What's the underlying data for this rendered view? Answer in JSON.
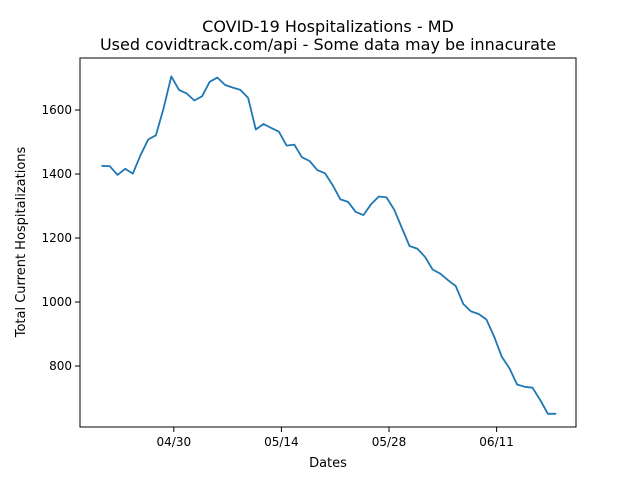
{
  "chart_data": {
    "type": "line",
    "title": "COVID-19 Hospitalizations - MD",
    "subtitle": "Used covidtrack.com/api - Some data may be innacurate",
    "xlabel": "Dates",
    "ylabel": "Total Current Hospitalizations",
    "x_ticks": [
      "04/30",
      "05/14",
      "05/28",
      "06/11"
    ],
    "y_ticks": [
      800,
      1000,
      1200,
      1400,
      1600
    ],
    "ylim": [
      622,
      1768
    ],
    "grid": false,
    "series": [
      {
        "color": "#1f77b4",
        "x": [
          "04/21",
          "04/22",
          "04/23",
          "04/24",
          "04/25",
          "04/26",
          "04/27",
          "04/28",
          "04/29",
          "04/30",
          "05/01",
          "05/02",
          "05/03",
          "05/04",
          "05/05",
          "05/06",
          "05/07",
          "05/08",
          "05/09",
          "05/10",
          "05/11",
          "05/12",
          "05/13",
          "05/14",
          "05/15",
          "05/16",
          "05/17",
          "05/18",
          "05/19",
          "05/20",
          "05/21",
          "05/22",
          "05/23",
          "05/24",
          "05/25",
          "05/26",
          "05/27",
          "05/28",
          "05/29",
          "05/30",
          "05/31",
          "06/01",
          "06/02",
          "06/03",
          "06/04",
          "06/05",
          "06/06",
          "06/07",
          "06/08",
          "06/09",
          "06/10",
          "06/11",
          "06/12",
          "06/13",
          "06/14",
          "06/15",
          "06/16",
          "06/17",
          "06/18",
          "06/19"
        ],
        "values": [
          1433,
          1432,
          1405,
          1424,
          1409,
          1466,
          1515,
          1528,
          1612,
          1711,
          1669,
          1658,
          1636,
          1649,
          1694,
          1707,
          1684,
          1676,
          1669,
          1644,
          1546,
          1563,
          1551,
          1539,
          1496,
          1499,
          1460,
          1448,
          1420,
          1410,
          1373,
          1329,
          1321,
          1290,
          1280,
          1314,
          1338,
          1335,
          1297,
          1240,
          1184,
          1176,
          1151,
          1111,
          1098,
          1078,
          1060,
          1004,
          981,
          973,
          956,
          903,
          840,
          804,
          754,
          747,
          744,
          706,
          663,
          663
        ]
      }
    ]
  }
}
